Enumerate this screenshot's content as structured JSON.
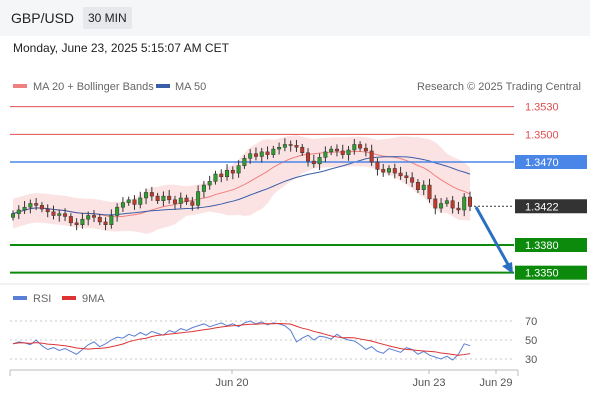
{
  "header": {
    "pair": "GBP/USD",
    "timeframe": "30 MIN"
  },
  "datetime": "Monday, June 23, 2025 5:15:07 AM CET",
  "legend": {
    "ma20": "MA 20 + Bollinger Bands",
    "ma50": "MA 50",
    "credit": "Research © 2025 Trading Central"
  },
  "levels": [
    {
      "label": "1.3530",
      "value": 1.353,
      "kind": "resistance"
    },
    {
      "label": "1.3500",
      "value": 1.35,
      "kind": "resistance"
    },
    {
      "label": "1.3470",
      "value": 1.347,
      "kind": "pivot"
    },
    {
      "label": "1.3422",
      "value": 1.3422,
      "kind": "last"
    },
    {
      "label": "1.3380",
      "value": 1.338,
      "kind": "support"
    },
    {
      "label": "1.3350",
      "value": 1.335,
      "kind": "support"
    }
  ],
  "rsi_legend": {
    "rsi": "RSI",
    "ma": "9MA"
  },
  "colors": {
    "resistance": "#e05050",
    "pivot": "#4a86e8",
    "support": "#0b8a0b",
    "last": "#333333",
    "ma50": "#3b5ea8",
    "ma20": "#f08080",
    "band": "#fadcdc",
    "arrow": "#2a6fc0",
    "candle_up": "#2e9e2e",
    "candle_down": "#c0392b",
    "rsi": "#5b7fd6",
    "rsi_ma": "#dd3333"
  },
  "chart_data": {
    "type": "candlestick",
    "x_labels": [
      "Jun 20",
      "Jun 23",
      "Jun 29"
    ],
    "y_range": [
      1.333,
      1.3555
    ],
    "close": [
      1.3414,
      1.3418,
      1.3421,
      1.3425,
      1.3423,
      1.3419,
      1.3416,
      1.3412,
      1.3414,
      1.3411,
      1.3404,
      1.3402,
      1.3408,
      1.3412,
      1.341,
      1.3405,
      1.3402,
      1.3412,
      1.3421,
      1.3426,
      1.3429,
      1.3424,
      1.3431,
      1.3437,
      1.3433,
      1.3428,
      1.3433,
      1.3429,
      1.3425,
      1.3431,
      1.3427,
      1.3423,
      1.3438,
      1.3445,
      1.3449,
      1.3457,
      1.3454,
      1.3461,
      1.3458,
      1.3466,
      1.3474,
      1.3479,
      1.3476,
      1.3481,
      1.3478,
      1.3484,
      1.3486,
      1.3489,
      1.3488,
      1.3486,
      1.348,
      1.3471,
      1.3468,
      1.3475,
      1.3481,
      1.3484,
      1.3482,
      1.3478,
      1.3483,
      1.3489,
      1.3485,
      1.3482,
      1.347,
      1.3462,
      1.3459,
      1.3463,
      1.3458,
      1.3455,
      1.3453,
      1.3448,
      1.344,
      1.3445,
      1.343,
      1.342,
      1.3425,
      1.3428,
      1.342,
      1.3418,
      1.3432,
      1.3422
    ],
    "rsi": [
      46,
      48,
      47,
      45,
      50,
      44,
      40,
      42,
      39,
      41,
      38,
      35,
      40,
      45,
      48,
      43,
      46,
      50,
      53,
      52,
      56,
      54,
      58,
      55,
      59,
      57,
      55,
      60,
      58,
      62,
      60,
      63,
      65,
      67,
      64,
      66,
      68,
      65,
      67,
      64,
      68,
      70,
      67,
      69,
      66,
      68,
      67,
      65,
      60,
      48,
      52,
      55,
      50,
      54,
      53,
      51,
      56,
      52,
      50,
      49,
      45,
      40,
      43,
      38,
      36,
      41,
      39,
      37,
      42,
      40,
      35,
      38,
      34,
      32,
      30,
      33,
      29,
      35,
      46,
      44
    ],
    "rsi_ticks": [
      70,
      50,
      30
    ]
  }
}
